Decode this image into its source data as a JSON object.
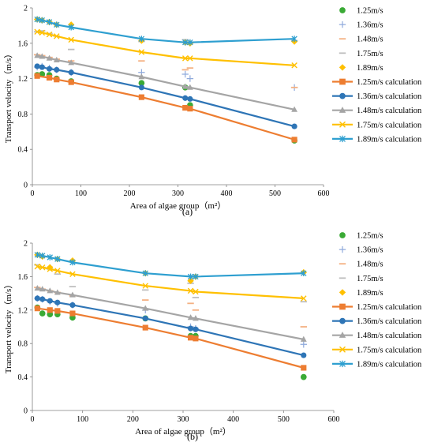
{
  "chart_data": [
    {
      "panel_label": "(a)",
      "type": "scatter",
      "ylabel": "Transport velocity（m/s）",
      "xlabel": "Area of algae group（m²）",
      "xlim": [
        0,
        600
      ],
      "ylim": [
        0,
        2
      ],
      "x_ticks": [
        "0",
        "100",
        "200",
        "300",
        "400",
        "500",
        "600"
      ],
      "y_ticks": [
        "0",
        "0.4",
        "0.8",
        "1.2",
        "1.6",
        "2"
      ],
      "legend_position": "right",
      "series": [
        {
          "name": "1.25m/s",
          "kind": "measured",
          "marker": "circle",
          "color": "#3aaa35",
          "x": [
            10,
            20,
            35,
            50,
            80,
            225,
            315,
            325,
            540
          ],
          "y": [
            1.24,
            1.25,
            1.24,
            1.2,
            1.17,
            1.15,
            1.1,
            0.9,
            0.5
          ]
        },
        {
          "name": "1.36m/s",
          "kind": "measured",
          "marker": "plus",
          "color": "#8faadc",
          "x": [
            10,
            20,
            35,
            50,
            80,
            225,
            315,
            325,
            540
          ],
          "y": [
            1.33,
            1.34,
            1.32,
            1.3,
            1.27,
            1.27,
            1.25,
            1.2,
            1.1
          ]
        },
        {
          "name": "1.48m/s",
          "kind": "measured",
          "marker": "dash",
          "color": "#f4b183",
          "x": [
            10,
            20,
            35,
            50,
            80,
            225,
            315,
            325,
            540
          ],
          "y": [
            1.47,
            1.46,
            1.44,
            1.42,
            1.4,
            1.4,
            1.3,
            1.32,
            1.1
          ]
        },
        {
          "name": "1.75m/s",
          "kind": "measured",
          "marker": "dash",
          "color": "#bfbfbf",
          "x": [
            10,
            20,
            35,
            50,
            80,
            225,
            315,
            325,
            540
          ],
          "y": [
            1.73,
            1.74,
            1.71,
            1.68,
            1.53,
            1.62,
            1.64,
            1.6,
            1.63
          ]
        },
        {
          "name": "1.89m/s",
          "kind": "measured",
          "marker": "diamond",
          "color": "#ffc000",
          "x": [
            10,
            20,
            35,
            50,
            80,
            225,
            315,
            325,
            540
          ],
          "y": [
            1.87,
            1.86,
            1.84,
            1.81,
            1.81,
            1.63,
            1.61,
            1.6,
            1.62
          ]
        },
        {
          "name": "1.25m/s calculation",
          "kind": "calculation",
          "marker": "square",
          "color": "#ed7d31",
          "x": [
            10,
            35,
            50,
            80,
            225,
            315,
            325,
            540
          ],
          "y": [
            1.23,
            1.21,
            1.19,
            1.16,
            0.99,
            0.87,
            0.86,
            0.51
          ]
        },
        {
          "name": "1.36m/s calculation",
          "kind": "calculation",
          "marker": "circle",
          "color": "#2e75b6",
          "x": [
            10,
            20,
            35,
            50,
            80,
            225,
            315,
            325,
            540
          ],
          "y": [
            1.34,
            1.33,
            1.31,
            1.3,
            1.27,
            1.1,
            0.98,
            0.97,
            0.66
          ]
        },
        {
          "name": "1.48m/s calculation",
          "kind": "calculation",
          "marker": "triangle",
          "color": "#a5a5a5",
          "x": [
            10,
            20,
            35,
            50,
            80,
            225,
            315,
            325,
            540
          ],
          "y": [
            1.46,
            1.45,
            1.43,
            1.41,
            1.38,
            1.22,
            1.11,
            1.1,
            0.85
          ]
        },
        {
          "name": "1.75m/s calculation",
          "kind": "calculation",
          "marker": "x",
          "color": "#ffc000",
          "x": [
            10,
            20,
            35,
            50,
            80,
            225,
            315,
            325,
            540
          ],
          "y": [
            1.73,
            1.72,
            1.7,
            1.68,
            1.64,
            1.5,
            1.43,
            1.43,
            1.35
          ]
        },
        {
          "name": "1.89m/s calculation",
          "kind": "calculation",
          "marker": "star",
          "color": "#2e9fd0",
          "x": [
            10,
            20,
            35,
            50,
            80,
            225,
            315,
            325,
            540
          ],
          "y": [
            1.87,
            1.86,
            1.84,
            1.81,
            1.78,
            1.65,
            1.61,
            1.61,
            1.65
          ]
        }
      ]
    },
    {
      "panel_label": "(b)",
      "type": "scatter",
      "ylabel": "Transport velocity（m/s）",
      "xlabel": "Area of algae group（m²）",
      "xlim": [
        0,
        600
      ],
      "ylim": [
        0,
        2
      ],
      "x_ticks": [
        "0",
        "100",
        "200",
        "300",
        "400",
        "500",
        "600"
      ],
      "y_ticks": [
        "0",
        "0.4",
        "0.8",
        "1.2",
        "1.6",
        "2"
      ],
      "legend_position": "right",
      "series": [
        {
          "name": "1.25m/s",
          "kind": "measured",
          "marker": "circle",
          "color": "#3aaa35",
          "x": [
            10,
            20,
            35,
            50,
            80,
            225,
            315,
            325,
            540
          ],
          "y": [
            1.23,
            1.16,
            1.15,
            1.15,
            1.11,
            1.1,
            0.89,
            0.89,
            0.4
          ]
        },
        {
          "name": "1.36m/s",
          "kind": "measured",
          "marker": "plus",
          "color": "#8faadc",
          "x": [
            10,
            20,
            35,
            50,
            80,
            225,
            315,
            325,
            540
          ],
          "y": [
            1.34,
            1.33,
            1.3,
            1.28,
            1.26,
            1.2,
            1.0,
            0.98,
            0.79
          ]
        },
        {
          "name": "1.48m/s",
          "kind": "measured",
          "marker": "dash",
          "color": "#f4b183",
          "x": [
            10,
            20,
            35,
            50,
            80,
            225,
            315,
            325,
            540
          ],
          "y": [
            1.47,
            1.45,
            1.43,
            1.41,
            1.37,
            1.32,
            1.28,
            1.2,
            1.0
          ]
        },
        {
          "name": "1.75m/s",
          "kind": "measured",
          "marker": "dash",
          "color": "#bfbfbf",
          "x": [
            10,
            20,
            35,
            50,
            80,
            225,
            315,
            325,
            540
          ],
          "y": [
            1.74,
            1.71,
            1.69,
            1.63,
            1.48,
            1.44,
            1.52,
            1.35,
            1.3
          ]
        },
        {
          "name": "1.89m/s",
          "kind": "measured",
          "marker": "diamond",
          "color": "#ffc000",
          "x": [
            10,
            20,
            35,
            50,
            80,
            225,
            315,
            325,
            540
          ],
          "y": [
            1.86,
            1.84,
            1.71,
            1.81,
            1.79,
            1.64,
            1.55,
            1.6,
            1.65
          ]
        },
        {
          "name": "1.25m/s calculation",
          "kind": "calculation",
          "marker": "square",
          "color": "#ed7d31",
          "x": [
            10,
            35,
            50,
            80,
            225,
            315,
            325,
            540
          ],
          "y": [
            1.22,
            1.2,
            1.19,
            1.16,
            0.99,
            0.87,
            0.86,
            0.51
          ]
        },
        {
          "name": "1.36m/s calculation",
          "kind": "calculation",
          "marker": "circle",
          "color": "#2e75b6",
          "x": [
            10,
            20,
            35,
            50,
            80,
            225,
            315,
            325,
            540
          ],
          "y": [
            1.34,
            1.33,
            1.31,
            1.29,
            1.26,
            1.1,
            0.98,
            0.97,
            0.66
          ]
        },
        {
          "name": "1.48m/s calculation",
          "kind": "calculation",
          "marker": "triangle",
          "color": "#a5a5a5",
          "x": [
            10,
            20,
            35,
            50,
            80,
            225,
            315,
            325,
            540
          ],
          "y": [
            1.46,
            1.45,
            1.43,
            1.41,
            1.38,
            1.22,
            1.11,
            1.1,
            0.85
          ]
        },
        {
          "name": "1.75m/s calculation",
          "kind": "calculation",
          "marker": "x",
          "color": "#ffc000",
          "x": [
            10,
            20,
            35,
            50,
            80,
            225,
            315,
            325,
            540
          ],
          "y": [
            1.72,
            1.71,
            1.69,
            1.67,
            1.63,
            1.49,
            1.43,
            1.42,
            1.34
          ]
        },
        {
          "name": "1.89m/s calculation",
          "kind": "calculation",
          "marker": "star",
          "color": "#2e9fd0",
          "x": [
            10,
            20,
            35,
            50,
            80,
            225,
            315,
            325,
            540
          ],
          "y": [
            1.86,
            1.85,
            1.83,
            1.81,
            1.77,
            1.64,
            1.6,
            1.6,
            1.64
          ]
        }
      ]
    }
  ]
}
